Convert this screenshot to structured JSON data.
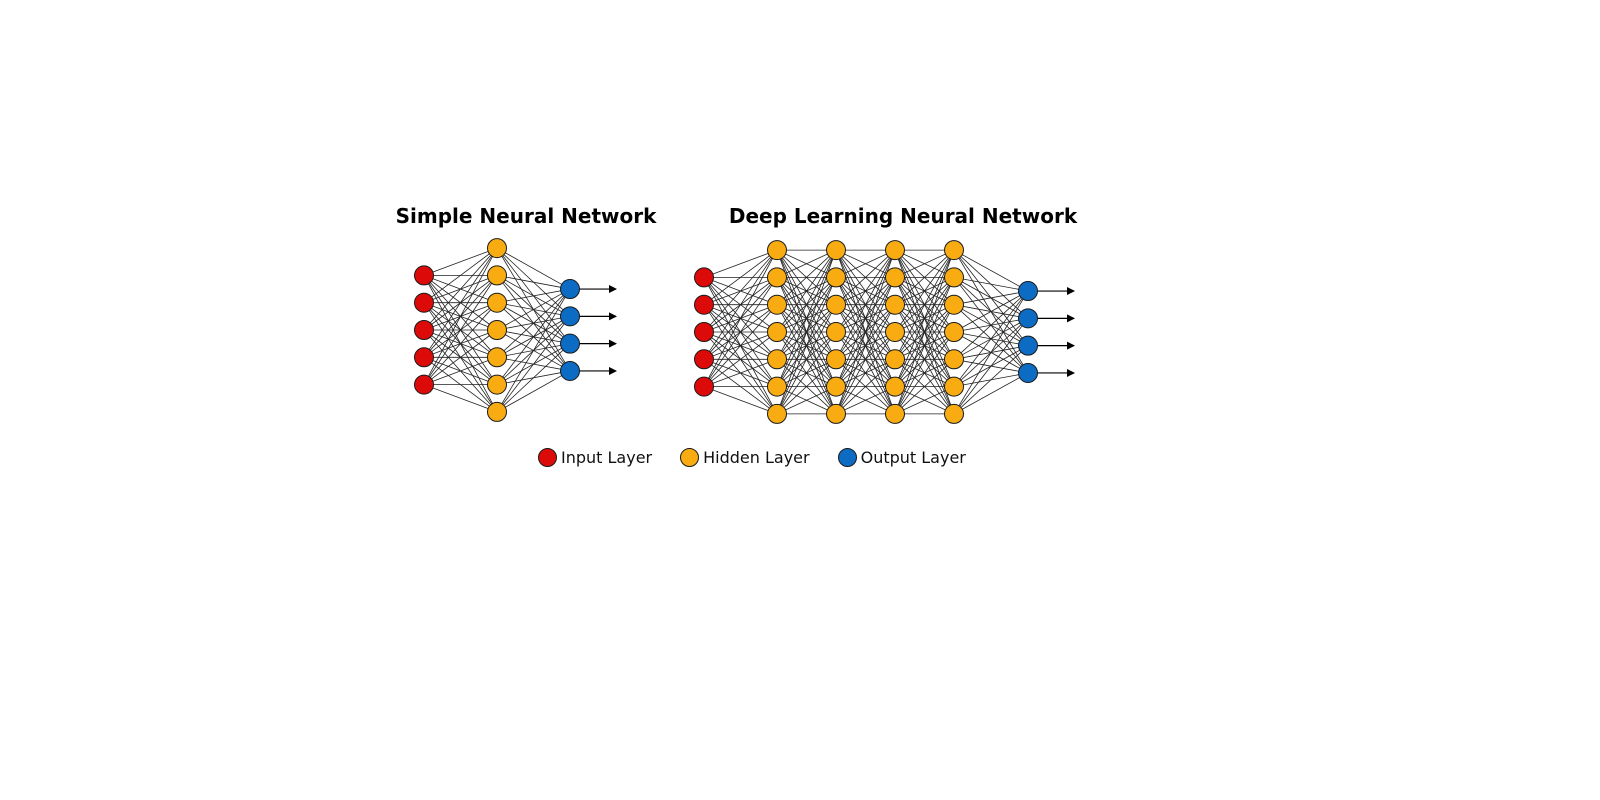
{
  "titles": {
    "simple": "Simple Neural Network",
    "deep": "Deep Learning Neural Network"
  },
  "colors": {
    "input": "#dd0a0a",
    "hidden": "#f9ac12",
    "output": "#0c6cc4",
    "edge": "#222222",
    "node_stroke": "#1a1a1a"
  },
  "networks": {
    "simple": {
      "layers": [
        {
          "type": "input",
          "nodes": 5
        },
        {
          "type": "hidden",
          "nodes": 7
        },
        {
          "type": "output",
          "nodes": 4
        }
      ]
    },
    "deep": {
      "layers": [
        {
          "type": "input",
          "nodes": 5
        },
        {
          "type": "hidden",
          "nodes": 7
        },
        {
          "type": "hidden",
          "nodes": 7
        },
        {
          "type": "hidden",
          "nodes": 7
        },
        {
          "type": "hidden",
          "nodes": 7
        },
        {
          "type": "output",
          "nodes": 4
        }
      ]
    }
  },
  "legend": [
    {
      "key": "input",
      "label": "Input Layer"
    },
    {
      "key": "hidden",
      "label": "Hidden Layer"
    },
    {
      "key": "output",
      "label": "Output Layer"
    }
  ]
}
